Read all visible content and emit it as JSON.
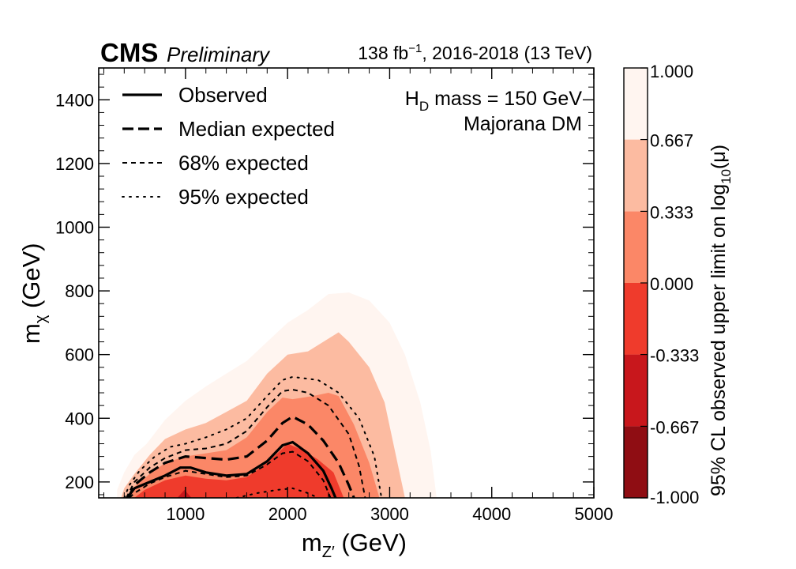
{
  "header": {
    "experiment": "CMS",
    "status": "Preliminary",
    "luminosity_main": "138 fb",
    "luminosity_sup": "−1",
    "luminosity_rest": ", 2016-2018 (13 TeV)"
  },
  "annotations": {
    "hd_prefix": "H",
    "hd_sub": "D",
    "hd_rest": " mass = 150 GeV",
    "dm_label": "Majorana DM"
  },
  "chart_data": {
    "type": "contour",
    "xlabel": {
      "main": "m",
      "sub": "Z′",
      "rest": " (GeV)"
    },
    "ylabel": {
      "main": "m",
      "sub": "χ",
      "rest": " (GeV)"
    },
    "xlim": [
      150,
      5000
    ],
    "ylim": [
      150,
      1500
    ],
    "x_ticks": [
      1000,
      2000,
      3000,
      4000,
      5000
    ],
    "y_ticks": [
      200,
      400,
      600,
      800,
      1000,
      1200,
      1400
    ],
    "x_tick_labels": [
      "1000",
      "2000",
      "3000",
      "4000",
      "5000"
    ],
    "y_tick_labels": [
      "200",
      "400",
      "600",
      "800",
      "1000",
      "1200",
      "1400"
    ],
    "colorbar": {
      "title": "95% CL observed upper limit on log",
      "title_sub": "10",
      "title_tail": "(μ)",
      "levels": [
        -1.0,
        -0.667,
        -0.333,
        0.0,
        0.333,
        0.667,
        1.0
      ],
      "tick_labels": [
        "-1.000",
        "-0.667",
        "-0.333",
        "0.000",
        "0.333",
        "0.667",
        "1.000"
      ],
      "colors": [
        "#8f0d13",
        "#c8171c",
        "#ef3b2c",
        "#fb8767",
        "#fcbba1",
        "#fff5f0"
      ]
    },
    "filled_regions": [
      {
        "level_min": 0.667,
        "level_max": 1.0,
        "color": "#fff5f0",
        "boundary": [
          [
            330,
            150
          ],
          [
            330,
            175
          ],
          [
            400,
            230
          ],
          [
            500,
            285
          ],
          [
            620,
            320
          ],
          [
            800,
            395
          ],
          [
            1000,
            455
          ],
          [
            1200,
            500
          ],
          [
            1400,
            540
          ],
          [
            1600,
            580
          ],
          [
            1800,
            640
          ],
          [
            2000,
            700
          ],
          [
            2200,
            740
          ],
          [
            2400,
            790
          ],
          [
            2600,
            795
          ],
          [
            2800,
            770
          ],
          [
            3000,
            700
          ],
          [
            3150,
            600
          ],
          [
            3300,
            450
          ],
          [
            3400,
            300
          ],
          [
            3460,
            150
          ]
        ]
      },
      {
        "level_min": 0.333,
        "level_max": 0.667,
        "color": "#fcbba1",
        "boundary": [
          [
            370,
            150
          ],
          [
            400,
            180
          ],
          [
            500,
            225
          ],
          [
            650,
            285
          ],
          [
            800,
            335
          ],
          [
            1000,
            365
          ],
          [
            1200,
            385
          ],
          [
            1400,
            420
          ],
          [
            1600,
            455
          ],
          [
            1800,
            540
          ],
          [
            2000,
            600
          ],
          [
            2200,
            610
          ],
          [
            2400,
            650
          ],
          [
            2500,
            670
          ],
          [
            2600,
            640
          ],
          [
            2800,
            560
          ],
          [
            2950,
            450
          ],
          [
            3050,
            300
          ],
          [
            3150,
            150
          ]
        ]
      },
      {
        "level_min": 0.0,
        "level_max": 0.333,
        "color": "#fb8767",
        "boundary": [
          [
            420,
            150
          ],
          [
            500,
            185
          ],
          [
            650,
            225
          ],
          [
            800,
            260
          ],
          [
            1000,
            280
          ],
          [
            1200,
            290
          ],
          [
            1400,
            300
          ],
          [
            1600,
            340
          ],
          [
            1800,
            420
          ],
          [
            1950,
            465
          ],
          [
            2050,
            460
          ],
          [
            2250,
            470
          ],
          [
            2400,
            480
          ],
          [
            2500,
            470
          ],
          [
            2650,
            380
          ],
          [
            2800,
            260
          ],
          [
            2900,
            150
          ]
        ]
      },
      {
        "level_min": -0.333,
        "level_max": 0.0,
        "color": "#ef3b2c",
        "boundary": [
          [
            500,
            150
          ],
          [
            600,
            175
          ],
          [
            800,
            205
          ],
          [
            1000,
            220
          ],
          [
            1200,
            210
          ],
          [
            1400,
            205
          ],
          [
            1600,
            215
          ],
          [
            1800,
            260
          ],
          [
            2000,
            320
          ],
          [
            2150,
            300
          ],
          [
            2300,
            270
          ],
          [
            2450,
            230
          ],
          [
            2550,
            150
          ]
        ]
      },
      {
        "level_min": -0.667,
        "level_max": -0.333,
        "color": "#c8171c",
        "boundary": [
          [
            920,
            150
          ],
          [
            990,
            175
          ],
          [
            1060,
            150
          ]
        ]
      }
    ],
    "series": [
      {
        "name": "Observed",
        "style": "solid",
        "width": 3.2,
        "points": [
          [
            430,
            150
          ],
          [
            500,
            180
          ],
          [
            650,
            200
          ],
          [
            800,
            220
          ],
          [
            950,
            245
          ],
          [
            1050,
            245
          ],
          [
            1200,
            230
          ],
          [
            1400,
            220
          ],
          [
            1600,
            225
          ],
          [
            1800,
            265
          ],
          [
            1950,
            315
          ],
          [
            2050,
            325
          ],
          [
            2200,
            290
          ],
          [
            2350,
            235
          ],
          [
            2430,
            180
          ],
          [
            2470,
            150
          ]
        ]
      },
      {
        "name": "Median expected",
        "style": "longdash",
        "width": 3.2,
        "points": [
          [
            440,
            150
          ],
          [
            500,
            190
          ],
          [
            650,
            230
          ],
          [
            800,
            260
          ],
          [
            1000,
            280
          ],
          [
            1200,
            275
          ],
          [
            1400,
            270
          ],
          [
            1600,
            280
          ],
          [
            1800,
            330
          ],
          [
            1950,
            385
          ],
          [
            2050,
            405
          ],
          [
            2200,
            380
          ],
          [
            2350,
            330
          ],
          [
            2500,
            260
          ],
          [
            2600,
            190
          ],
          [
            2650,
            150
          ]
        ]
      },
      {
        "name": "68% expected",
        "style": "shortdash",
        "width": 2,
        "points": [
          [
            450,
            150
          ],
          [
            500,
            165
          ],
          [
            650,
            195
          ],
          [
            800,
            215
          ],
          [
            1000,
            235
          ],
          [
            1200,
            225
          ],
          [
            1400,
            215
          ],
          [
            1600,
            220
          ],
          [
            1800,
            255
          ],
          [
            1950,
            290
          ],
          [
            2050,
            295
          ],
          [
            2200,
            265
          ],
          [
            2350,
            205
          ],
          [
            2420,
            150
          ]
        ]
      },
      {
        "name": "68% expected (upper)",
        "style": "shortdash",
        "width": 2,
        "points": [
          [
            420,
            150
          ],
          [
            500,
            200
          ],
          [
            650,
            245
          ],
          [
            800,
            275
          ],
          [
            1000,
            300
          ],
          [
            1200,
            305
          ],
          [
            1400,
            320
          ],
          [
            1600,
            360
          ],
          [
            1800,
            435
          ],
          [
            1950,
            485
          ],
          [
            2050,
            490
          ],
          [
            2200,
            480
          ],
          [
            2400,
            440
          ],
          [
            2600,
            350
          ],
          [
            2700,
            250
          ],
          [
            2760,
            150
          ]
        ]
      },
      {
        "name": "95% expected",
        "style": "dotted",
        "width": 2,
        "points": [
          [
            400,
            150
          ],
          [
            450,
            190
          ],
          [
            550,
            235
          ],
          [
            700,
            280
          ],
          [
            850,
            310
          ],
          [
            1000,
            320
          ],
          [
            1200,
            340
          ],
          [
            1400,
            365
          ],
          [
            1600,
            400
          ],
          [
            1800,
            470
          ],
          [
            1950,
            520
          ],
          [
            2050,
            530
          ],
          [
            2300,
            520
          ],
          [
            2500,
            480
          ],
          [
            2700,
            400
          ],
          [
            2850,
            280
          ],
          [
            2920,
            150
          ]
        ]
      },
      {
        "name": "95% expected (lower)",
        "style": "dotted",
        "width": 2,
        "points": [
          [
            1500,
            150
          ],
          [
            1700,
            165
          ],
          [
            1900,
            175
          ],
          [
            2050,
            180
          ],
          [
            2200,
            165
          ],
          [
            2300,
            150
          ]
        ]
      }
    ],
    "legend": [
      {
        "label": "Observed",
        "style": "solid"
      },
      {
        "label": "Median expected",
        "style": "longdash"
      },
      {
        "label": "68% expected",
        "style": "shortdash"
      },
      {
        "label": "95% expected",
        "style": "dotted"
      }
    ],
    "legend_position": "top-left"
  }
}
